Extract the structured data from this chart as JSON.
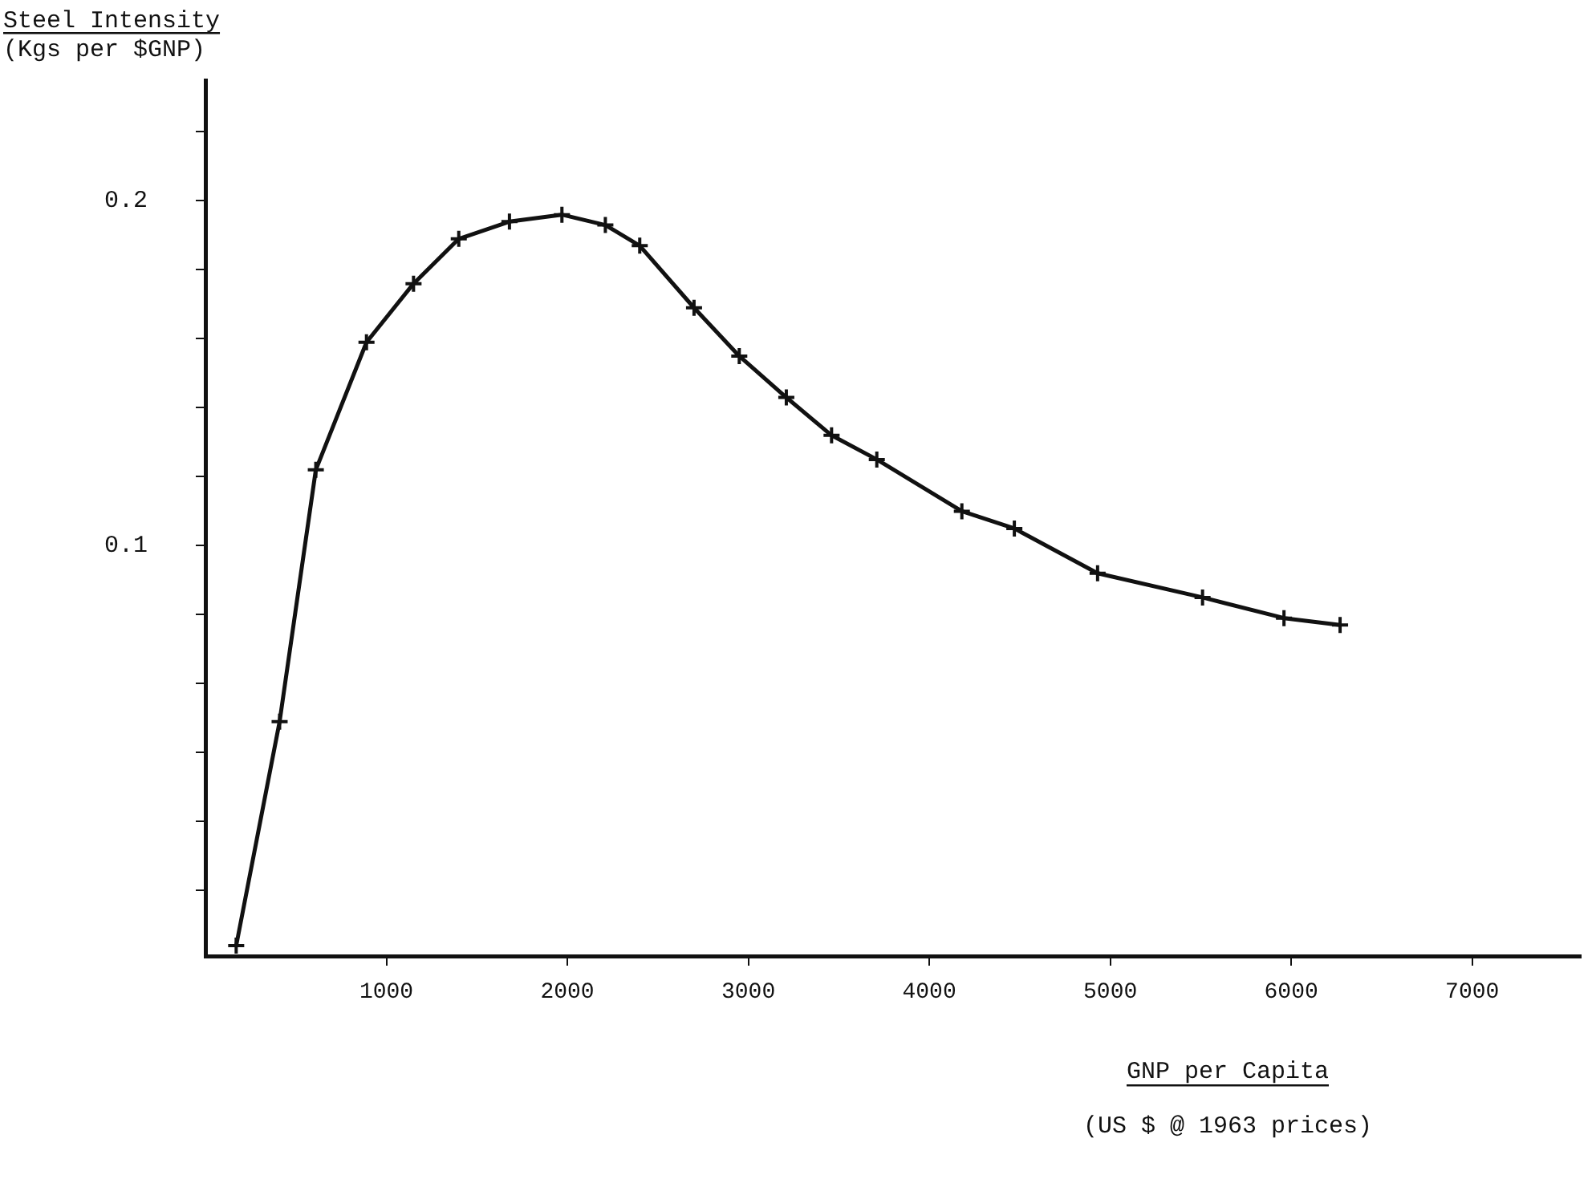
{
  "chart_data": {
    "type": "line",
    "xlabel": "GNP per Capita\n(US $ @ 1963 prices)",
    "ylabel": "Steel Intensity\n(Kgs per $GNP)",
    "x": [
      170,
      410,
      610,
      890,
      1150,
      1400,
      1680,
      1970,
      2210,
      2400,
      2700,
      2950,
      3210,
      3460,
      3710,
      4180,
      4470,
      4930,
      5510,
      5960,
      6270
    ],
    "values": [
      -0.016,
      0.049,
      0.122,
      0.159,
      0.176,
      0.189,
      0.194,
      0.196,
      0.193,
      0.187,
      0.169,
      0.155,
      0.143,
      0.132,
      0.125,
      0.11,
      0.105,
      0.092,
      0.085,
      0.079,
      0.077
    ],
    "color": "#111111",
    "marker": "cross",
    "line_style": "solid",
    "xlim": [
      0,
      7600
    ],
    "xticks": [
      1000,
      2000,
      3000,
      4000,
      5000,
      6000,
      7000
    ],
    "ylim": [
      -0.019,
      0.235
    ],
    "yticks": [
      {
        "value": 0,
        "label": null
      },
      {
        "value": 0.02,
        "label": null
      },
      {
        "value": 0.04,
        "label": null
      },
      {
        "value": 0.06,
        "label": null
      },
      {
        "value": 0.08,
        "label": null
      },
      {
        "value": 0.1,
        "label": "0.1"
      },
      {
        "value": 0.12,
        "label": null
      },
      {
        "value": 0.14,
        "label": null
      },
      {
        "value": 0.16,
        "label": null
      },
      {
        "value": 0.18,
        "label": null
      },
      {
        "value": 0.2,
        "label": "0.2"
      },
      {
        "value": 0.22,
        "label": null
      }
    ],
    "grid": false,
    "legend": false
  }
}
